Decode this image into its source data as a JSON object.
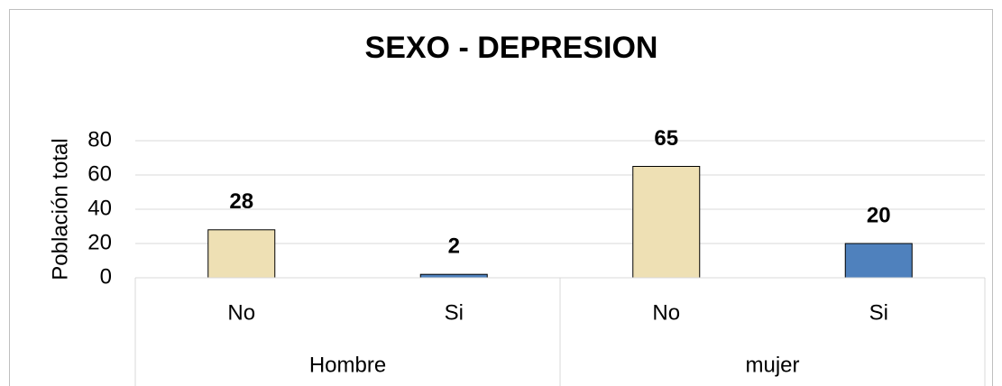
{
  "chart_data": {
    "type": "bar",
    "title": "SEXO - DEPRESION",
    "y_label": "Población total",
    "groups": [
      {
        "name": "Hombre",
        "categories": [
          "No",
          "Si"
        ],
        "values": [
          28,
          2
        ]
      },
      {
        "name": "mujer",
        "categories": [
          "No",
          "Si"
        ],
        "values": [
          65,
          20
        ]
      }
    ],
    "category_colors": [
      "#EEE0B4",
      "#4F81BD"
    ],
    "ylim": [
      0,
      80
    ],
    "yticks": [
      0,
      20,
      40,
      60,
      80
    ],
    "grid": true
  }
}
